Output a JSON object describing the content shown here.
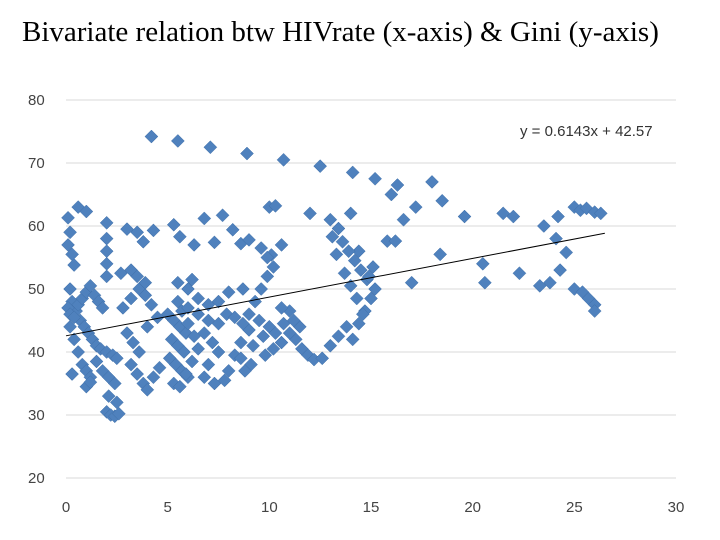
{
  "title": "Bivariate relation btw HIVrate (x-axis) & Gini (y-axis)",
  "chart_data": {
    "type": "scatter",
    "title": "Bivariate relation btw HIVrate (x-axis) & Gini (y-axis)",
    "xlabel": "",
    "ylabel": "",
    "xlim": [
      0,
      30
    ],
    "ylim": [
      20,
      80
    ],
    "xticks": [
      "0",
      "5",
      "10",
      "15",
      "20",
      "25",
      "30"
    ],
    "yticks": [
      "20",
      "30",
      "40",
      "50",
      "60",
      "70",
      "80"
    ],
    "grid": "horizontal",
    "marker_color": "#4F81BD",
    "trendline": {
      "slope": 0.6143,
      "intercept": 42.57,
      "x_range": [
        0,
        26.5
      ],
      "label": "y = 0.6143x + 42.57",
      "color": "#000000"
    },
    "points": [
      [
        4.2,
        74.2
      ],
      [
        5.5,
        73.5
      ],
      [
        7.1,
        72.5
      ],
      [
        8.9,
        71.5
      ],
      [
        10.7,
        70.5
      ],
      [
        12.5,
        69.5
      ],
      [
        14.1,
        68.5
      ],
      [
        15.2,
        67.5
      ],
      [
        16.3,
        66.5
      ],
      [
        18.0,
        67.0
      ],
      [
        10.0,
        63.0
      ],
      [
        10.3,
        63.2
      ],
      [
        12.0,
        62.0
      ],
      [
        13.0,
        61.0
      ],
      [
        14.0,
        62.0
      ],
      [
        16.0,
        65.0
      ],
      [
        17.2,
        63.0
      ],
      [
        18.5,
        64.0
      ],
      [
        19.6,
        61.5
      ],
      [
        21.5,
        62.0
      ],
      [
        22.0,
        61.5
      ],
      [
        24.2,
        61.5
      ],
      [
        25.0,
        63.0
      ],
      [
        25.3,
        62.5
      ],
      [
        25.6,
        62.8
      ],
      [
        26.0,
        62.2
      ],
      [
        26.3,
        62.0
      ],
      [
        23.5,
        60.0
      ],
      [
        24.1,
        58.0
      ],
      [
        24.6,
        55.8
      ],
      [
        24.3,
        53.0
      ],
      [
        23.8,
        51.0
      ],
      [
        23.3,
        50.5
      ],
      [
        22.3,
        52.5
      ],
      [
        20.5,
        54.0
      ],
      [
        20.6,
        51.0
      ],
      [
        17.0,
        51.0
      ],
      [
        18.4,
        55.5
      ],
      [
        25.0,
        50.0
      ],
      [
        25.4,
        49.5
      ],
      [
        25.7,
        48.5
      ],
      [
        26.0,
        47.5
      ],
      [
        26.0,
        46.5
      ],
      [
        0.1,
        61.3
      ],
      [
        0.2,
        59.0
      ],
      [
        0.1,
        57.0
      ],
      [
        0.3,
        55.5
      ],
      [
        0.4,
        53.8
      ],
      [
        0.6,
        63.0
      ],
      [
        1.0,
        62.3
      ],
      [
        2.0,
        60.5
      ],
      [
        2.0,
        58.0
      ],
      [
        2.0,
        56.0
      ],
      [
        2.0,
        54.0
      ],
      [
        2.0,
        52.0
      ],
      [
        3.0,
        59.5
      ],
      [
        3.5,
        59.0
      ],
      [
        3.8,
        57.5
      ],
      [
        4.3,
        59.3
      ],
      [
        5.3,
        60.2
      ],
      [
        5.6,
        58.3
      ],
      [
        6.3,
        57.0
      ],
      [
        6.8,
        61.2
      ],
      [
        7.3,
        57.4
      ],
      [
        7.7,
        61.7
      ],
      [
        8.2,
        59.4
      ],
      [
        8.6,
        57.2
      ],
      [
        9.0,
        57.8
      ],
      [
        9.6,
        56.5
      ],
      [
        10.1,
        55.4
      ],
      [
        10.6,
        57.0
      ],
      [
        13.1,
        58.3
      ],
      [
        13.4,
        59.6
      ],
      [
        14.4,
        56.0
      ],
      [
        15.8,
        57.6
      ],
      [
        16.2,
        57.6
      ],
      [
        16.6,
        61.0
      ],
      [
        0.2,
        50.0
      ],
      [
        0.3,
        48.0
      ],
      [
        0.5,
        46.5
      ],
      [
        0.7,
        45.0
      ],
      [
        0.9,
        44.0
      ],
      [
        1.1,
        43.0
      ],
      [
        1.3,
        42.0
      ],
      [
        1.5,
        41.0
      ],
      [
        1.7,
        40.5
      ],
      [
        2.0,
        40.0
      ],
      [
        2.3,
        39.5
      ],
      [
        2.5,
        39.0
      ],
      [
        0.2,
        44.0
      ],
      [
        0.4,
        42.0
      ],
      [
        0.6,
        40.0
      ],
      [
        0.8,
        38.0
      ],
      [
        1.0,
        37.0
      ],
      [
        1.2,
        36.0
      ],
      [
        0.3,
        36.5
      ],
      [
        1.5,
        38.5
      ],
      [
        1.8,
        37.0
      ],
      [
        2.1,
        36.0
      ],
      [
        2.4,
        35.0
      ],
      [
        2.0,
        30.5
      ],
      [
        2.2,
        30.0
      ],
      [
        2.4,
        29.8
      ],
      [
        2.6,
        30.2
      ],
      [
        2.5,
        32.0
      ],
      [
        2.1,
        33.0
      ],
      [
        1.0,
        34.5
      ],
      [
        1.2,
        35.2
      ],
      [
        0.1,
        47.0
      ],
      [
        0.2,
        46.0
      ],
      [
        0.4,
        45.5
      ],
      [
        0.6,
        47.5
      ],
      [
        0.8,
        48.5
      ],
      [
        1.0,
        49.5
      ],
      [
        1.2,
        50.5
      ],
      [
        1.4,
        49.0
      ],
      [
        1.6,
        48.0
      ],
      [
        1.8,
        47.0
      ],
      [
        3.0,
        43.0
      ],
      [
        3.3,
        41.5
      ],
      [
        3.6,
        40.0
      ],
      [
        3.2,
        38.0
      ],
      [
        3.5,
        36.5
      ],
      [
        3.8,
        35.0
      ],
      [
        4.0,
        34.0
      ],
      [
        4.3,
        36.0
      ],
      [
        4.6,
        37.5
      ],
      [
        4.0,
        44.0
      ],
      [
        4.5,
        45.5
      ],
      [
        2.8,
        47.0
      ],
      [
        3.2,
        48.5
      ],
      [
        3.6,
        50.0
      ],
      [
        3.9,
        49.0
      ],
      [
        4.2,
        47.5
      ],
      [
        2.7,
        52.5
      ],
      [
        3.2,
        53.0
      ],
      [
        3.5,
        52.0
      ],
      [
        3.9,
        51.0
      ],
      [
        5.0,
        46.0
      ],
      [
        5.3,
        45.0
      ],
      [
        5.6,
        44.0
      ],
      [
        5.9,
        43.0
      ],
      [
        5.2,
        42.0
      ],
      [
        5.5,
        41.0
      ],
      [
        5.8,
        40.0
      ],
      [
        5.1,
        39.0
      ],
      [
        5.4,
        38.0
      ],
      [
        5.7,
        37.0
      ],
      [
        6.0,
        36.0
      ],
      [
        5.3,
        35.0
      ],
      [
        5.6,
        34.5
      ],
      [
        5.9,
        36.5
      ],
      [
        6.2,
        38.5
      ],
      [
        6.5,
        40.5
      ],
      [
        6.3,
        42.5
      ],
      [
        6.0,
        44.5
      ],
      [
        5.7,
        46.5
      ],
      [
        5.5,
        48.0
      ],
      [
        6.0,
        47.0
      ],
      [
        6.5,
        46.0
      ],
      [
        7.0,
        45.0
      ],
      [
        6.8,
        43.0
      ],
      [
        7.2,
        41.5
      ],
      [
        7.5,
        40.0
      ],
      [
        7.0,
        38.0
      ],
      [
        6.8,
        36.0
      ],
      [
        7.3,
        35.0
      ],
      [
        7.8,
        35.5
      ],
      [
        8.0,
        37.0
      ],
      [
        8.3,
        39.5
      ],
      [
        8.6,
        41.5
      ],
      [
        9.0,
        43.5
      ],
      [
        7.5,
        44.5
      ],
      [
        7.9,
        46.0
      ],
      [
        8.3,
        45.5
      ],
      [
        8.7,
        44.5
      ],
      [
        7.0,
        47.5
      ],
      [
        7.5,
        48.0
      ],
      [
        8.0,
        49.5
      ],
      [
        6.5,
        48.5
      ],
      [
        6.0,
        50.0
      ],
      [
        5.5,
        51.0
      ],
      [
        6.2,
        51.5
      ],
      [
        9.5,
        45.0
      ],
      [
        9.2,
        41.0
      ],
      [
        9.8,
        39.5
      ],
      [
        10.2,
        40.5
      ],
      [
        10.6,
        41.5
      ],
      [
        9.7,
        42.5
      ],
      [
        10.0,
        44.0
      ],
      [
        10.3,
        43.0
      ],
      [
        10.7,
        44.5
      ],
      [
        11.0,
        46.5
      ],
      [
        9.0,
        46.0
      ],
      [
        9.1,
        38.0
      ],
      [
        8.8,
        37.0
      ],
      [
        8.6,
        39.0
      ],
      [
        11.3,
        42.0
      ],
      [
        11.6,
        40.5
      ],
      [
        11.9,
        39.5
      ],
      [
        12.2,
        38.8
      ],
      [
        12.6,
        39.0
      ],
      [
        11.5,
        44.0
      ],
      [
        11.0,
        43.0
      ],
      [
        9.3,
        48.0
      ],
      [
        9.6,
        50.0
      ],
      [
        9.9,
        52.0
      ],
      [
        10.2,
        53.5
      ],
      [
        9.9,
        55.0
      ],
      [
        11.2,
        45.0
      ],
      [
        10.6,
        47.0
      ],
      [
        8.7,
        50.0
      ],
      [
        13.0,
        41.0
      ],
      [
        13.4,
        42.5
      ],
      [
        13.8,
        44.0
      ],
      [
        14.1,
        42.0
      ],
      [
        14.4,
        44.5
      ],
      [
        14.7,
        46.5
      ],
      [
        15.0,
        48.5
      ],
      [
        15.2,
        50.0
      ],
      [
        14.8,
        51.5
      ],
      [
        14.5,
        53.0
      ],
      [
        14.2,
        54.5
      ],
      [
        13.9,
        56.0
      ],
      [
        13.6,
        57.5
      ],
      [
        13.3,
        55.5
      ],
      [
        13.7,
        52.5
      ],
      [
        14.0,
        50.5
      ],
      [
        14.3,
        48.5
      ],
      [
        14.6,
        46.0
      ],
      [
        14.9,
        52.0
      ],
      [
        15.1,
        53.5
      ]
    ]
  }
}
